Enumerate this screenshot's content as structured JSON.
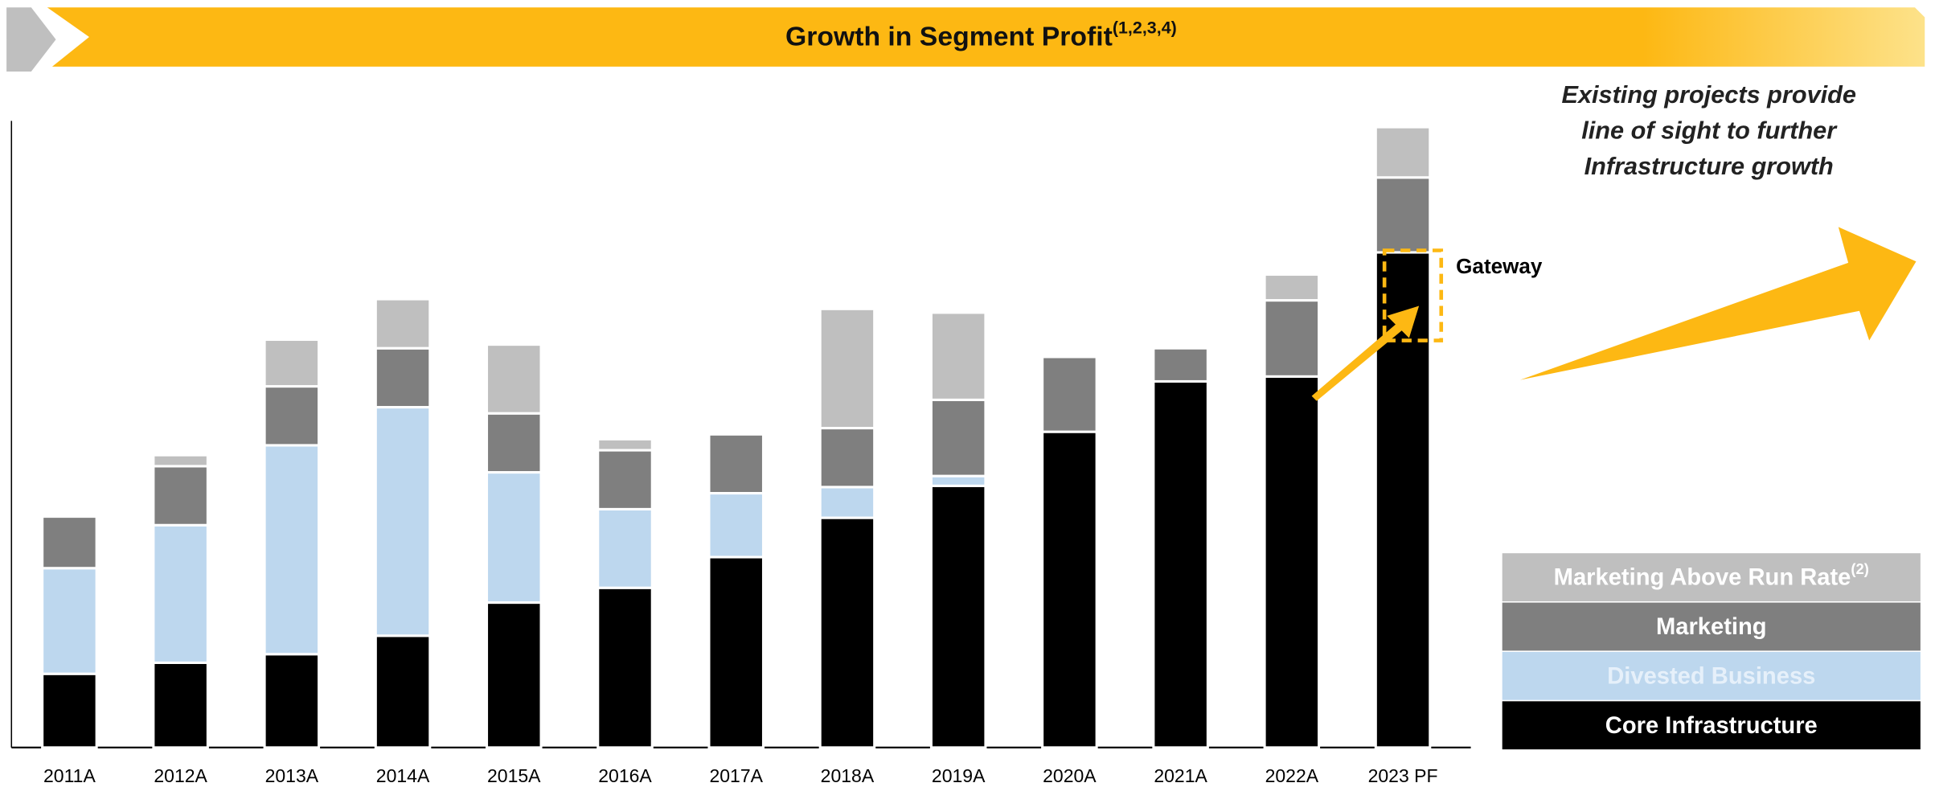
{
  "chart_data": {
    "type": "stacked_bar",
    "title": "Growth in Segment Profit",
    "title_superscript": "(1,2,3,4)",
    "annotation_lines": [
      "Existing projects provide",
      "line of sight to further",
      "Infrastructure growth"
    ],
    "callout": "Gateway",
    "categories": [
      "2011A",
      "2012A",
      "2013A",
      "2014A",
      "2015A",
      "2016A",
      "2017A",
      "2018A",
      "2019A",
      "2020A",
      "2021A",
      "2022A",
      "2023 PF"
    ],
    "series": [
      {
        "name": "Core Infrastructure",
        "color": "#000000",
        "text_color": "#ffffff",
        "values": [
          60,
          69,
          76,
          91,
          118,
          130,
          155,
          187,
          213,
          257,
          298,
          302,
          403
        ]
      },
      {
        "name": "Divested Business",
        "color": "#bdd7ee",
        "text_color": "#e6f0fa",
        "values": [
          86,
          112,
          170,
          186,
          106,
          64,
          52,
          25,
          8,
          0,
          0,
          0,
          0
        ]
      },
      {
        "name": "Marketing",
        "color": "#7f7f7f",
        "text_color": "#ffffff",
        "values": [
          42,
          48,
          48,
          48,
          48,
          48,
          48,
          48,
          62,
          61,
          27,
          62,
          61
        ]
      },
      {
        "name": "Marketing Above Run Rate",
        "superscript": "(2)",
        "color": "#bfbfbf",
        "text_color": "#ffffff",
        "values": [
          0,
          9,
          38,
          40,
          56,
          9,
          2,
          97,
          71,
          2,
          0,
          21,
          41
        ]
      }
    ]
  }
}
